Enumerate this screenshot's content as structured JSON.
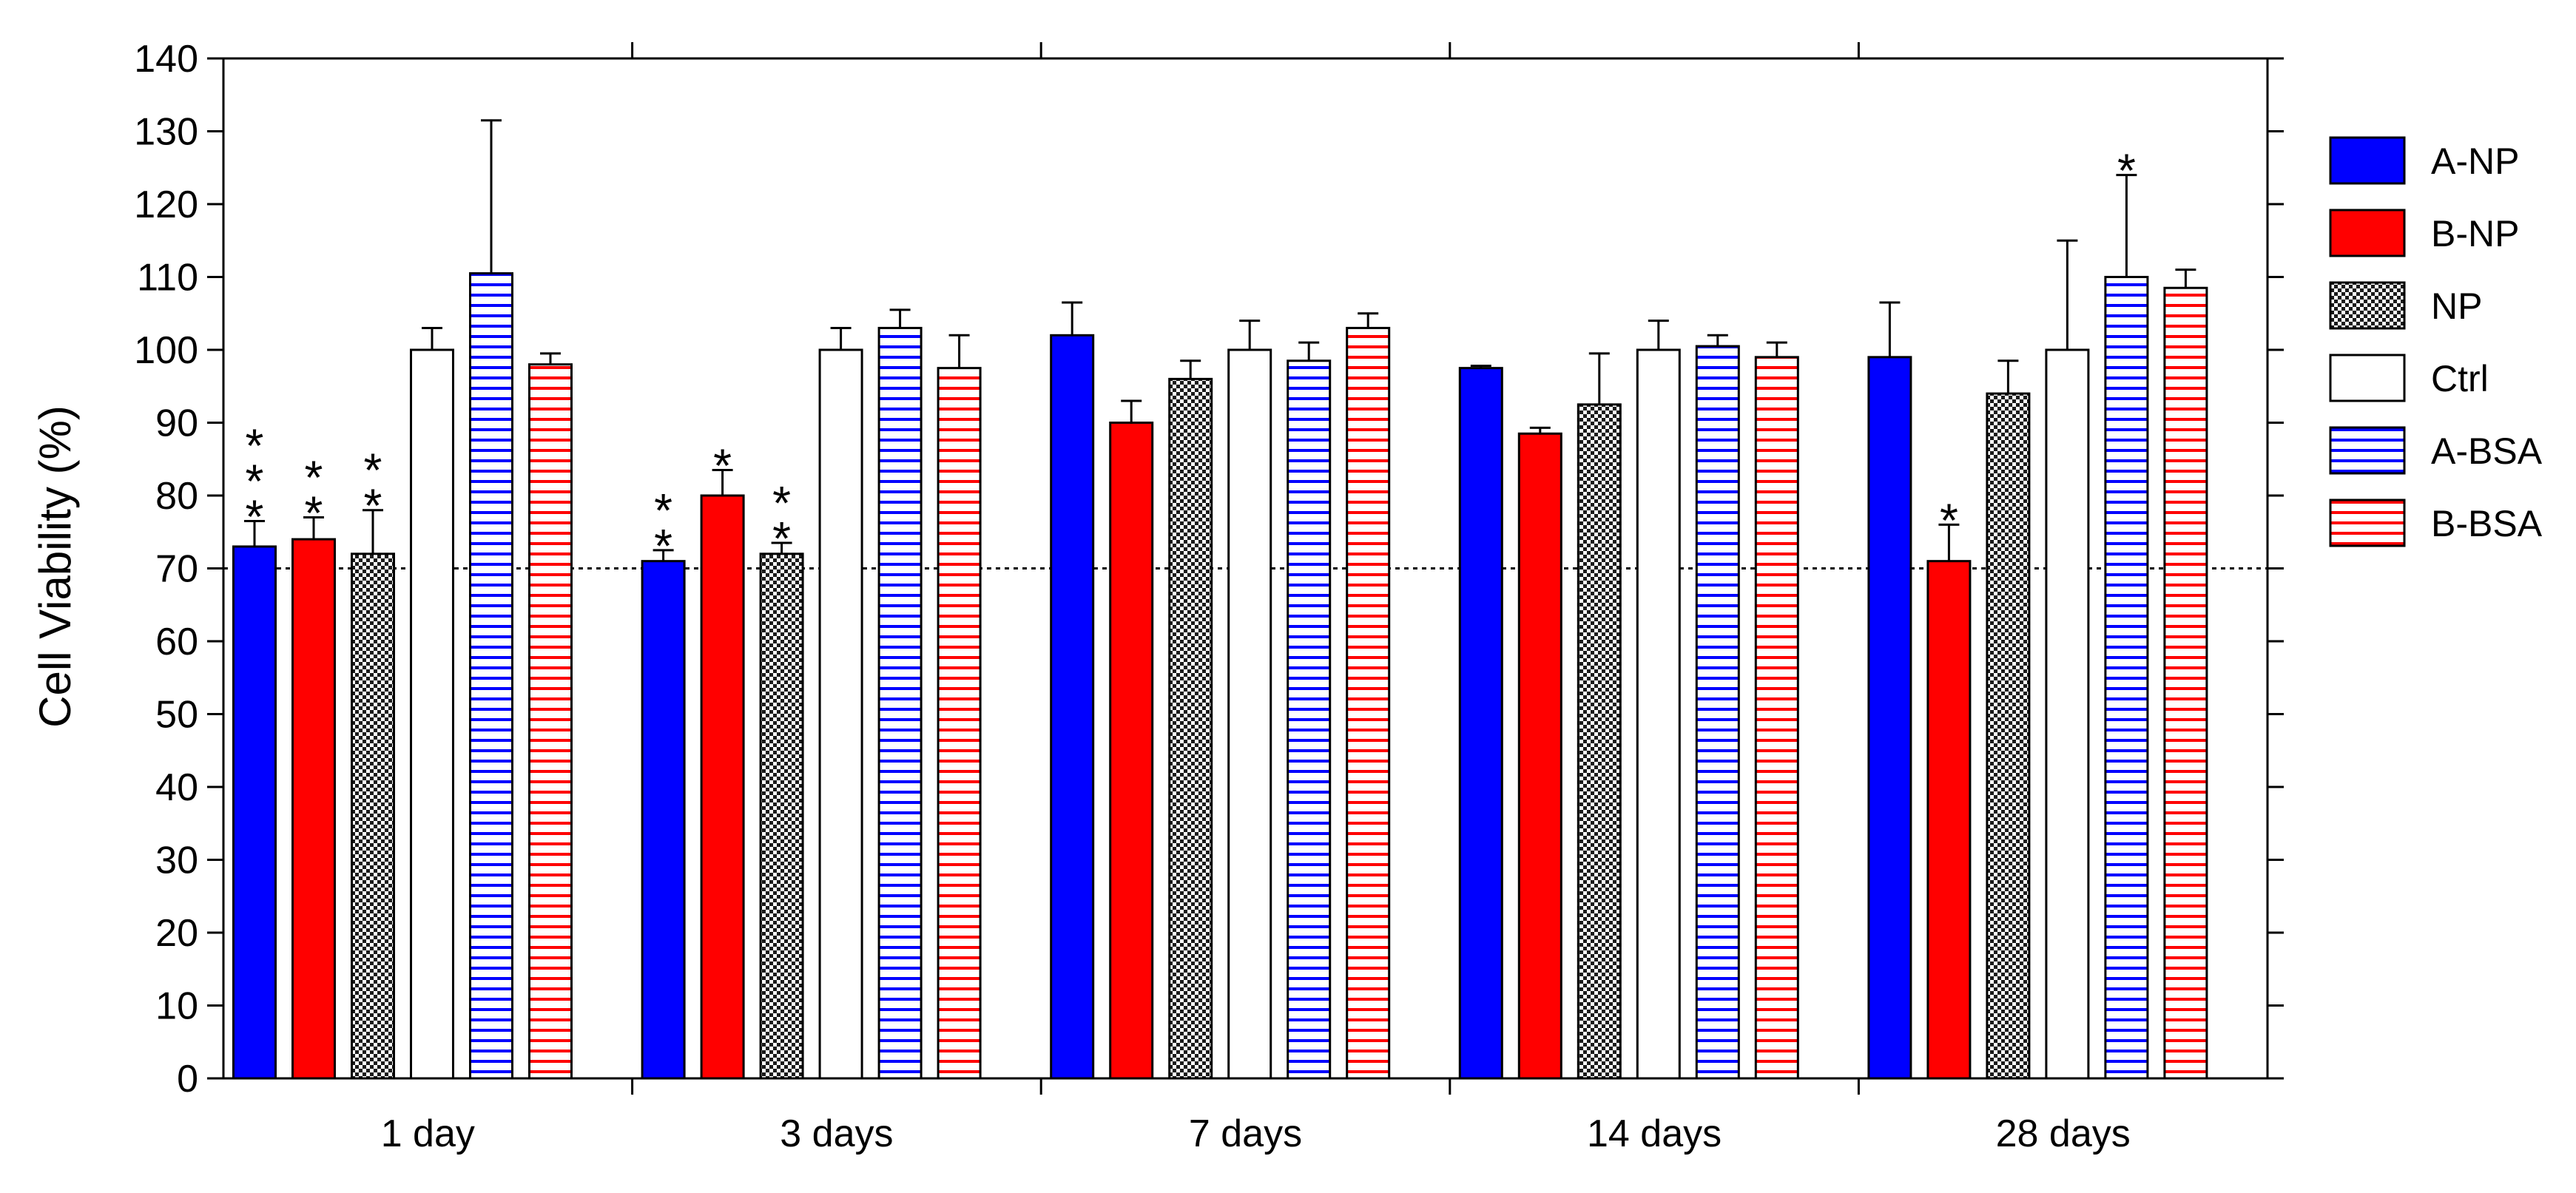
{
  "chart_data": {
    "type": "bar",
    "title": "",
    "xlabel": "",
    "ylabel": "Cell Viability (%)",
    "ylim": [
      0,
      140
    ],
    "yticks": [
      0,
      10,
      20,
      30,
      40,
      50,
      60,
      70,
      80,
      90,
      100,
      110,
      120,
      130,
      140
    ],
    "reference_line": 70,
    "legend_position": "right",
    "categories": [
      "1 day",
      "3 days",
      "7 days",
      "14 days",
      "28 days"
    ],
    "series": [
      {
        "name": "A-NP",
        "pattern": "solid",
        "color": "#0000ff",
        "values": [
          73,
          71,
          102,
          97.5,
          99
        ],
        "errors": [
          3.5,
          1.5,
          4.5,
          0.3,
          7.5
        ],
        "stars": [
          "***",
          "**",
          "",
          "",
          ""
        ]
      },
      {
        "name": "B-NP",
        "pattern": "solid",
        "color": "#ff0000",
        "values": [
          74,
          80,
          90,
          88.5,
          71
        ],
        "errors": [
          3,
          3.5,
          3,
          0.8,
          5
        ],
        "stars": [
          "**",
          "*",
          "",
          "",
          "*"
        ]
      },
      {
        "name": "NP",
        "pattern": "checker",
        "color": "#555555",
        "values": [
          72,
          72,
          96,
          92.5,
          94
        ],
        "errors": [
          6,
          1.5,
          2.5,
          7,
          4.5
        ],
        "stars": [
          "**",
          "**",
          "",
          "",
          ""
        ]
      },
      {
        "name": "Ctrl",
        "pattern": "open",
        "color": "#000000",
        "values": [
          100,
          100,
          100,
          100,
          100
        ],
        "errors": [
          3,
          3,
          4,
          4,
          15
        ],
        "stars": [
          "",
          "",
          "",
          "",
          ""
        ]
      },
      {
        "name": "A-BSA",
        "pattern": "hstripe",
        "color": "#0000ff",
        "values": [
          110.5,
          103,
          98.5,
          100.5,
          110
        ],
        "errors": [
          21,
          2.5,
          2.5,
          1.5,
          14
        ],
        "stars": [
          "",
          "",
          "",
          "",
          "*"
        ]
      },
      {
        "name": "B-BSA",
        "pattern": "hstripe",
        "color": "#ff0000",
        "values": [
          98,
          97.5,
          103,
          99,
          108.5
        ],
        "errors": [
          1.5,
          4.5,
          2,
          2,
          2.5
        ],
        "stars": [
          "",
          "",
          "",
          "",
          ""
        ]
      }
    ]
  }
}
